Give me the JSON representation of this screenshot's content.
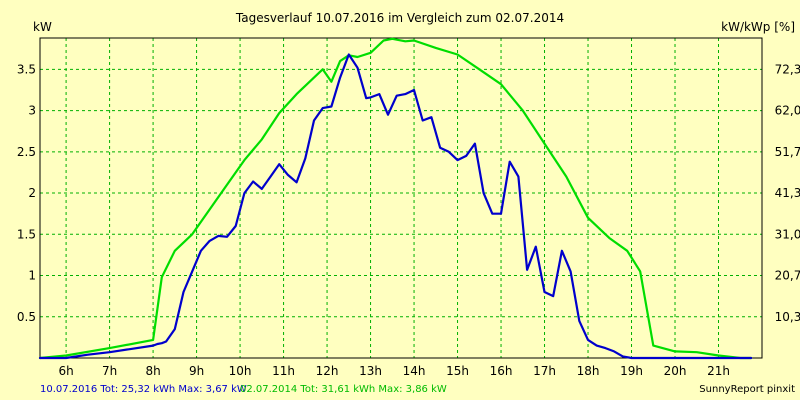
{
  "chart_data": {
    "type": "line",
    "title": "Tagesverlauf 10.07.2016 im Vergleich zum 02.07.2014",
    "ylabel_left": "kW",
    "ylabel_right": "kW/kWp [%]",
    "xlim": [
      5.4,
      22.0
    ],
    "ylim": [
      0,
      3.88
    ],
    "x_ticks": [
      6,
      7,
      8,
      9,
      10,
      11,
      12,
      13,
      14,
      15,
      16,
      17,
      18,
      19,
      20,
      21
    ],
    "x_tick_labels": [
      "6h",
      "7h",
      "8h",
      "9h",
      "10h",
      "11h",
      "12h",
      "13h",
      "14h",
      "15h",
      "16h",
      "17h",
      "18h",
      "19h",
      "20h",
      "21h"
    ],
    "y_ticks": [
      0.5,
      1,
      1.5,
      2,
      2.5,
      3,
      3.5
    ],
    "y_tick_labels": [
      "0.5",
      "1",
      "1.5",
      "2",
      "2.5",
      "3",
      "3.5"
    ],
    "y2_tick_labels": [
      "10,3",
      "20,7",
      "31,0",
      "41,3",
      "51,7",
      "62,0",
      "72,3"
    ],
    "grid": true,
    "series": [
      {
        "name": "10.07.2016",
        "color": "#0000CC",
        "x": [
          5.4,
          6.0,
          6.5,
          7.0,
          7.5,
          8.0,
          8.1,
          8.2,
          8.3,
          8.5,
          8.7,
          8.9,
          9.1,
          9.3,
          9.5,
          9.7,
          9.9,
          10.1,
          10.3,
          10.5,
          10.7,
          10.9,
          11.1,
          11.3,
          11.5,
          11.7,
          11.9,
          12.1,
          12.3,
          12.5,
          12.7,
          12.9,
          13.0,
          13.2,
          13.4,
          13.6,
          13.8,
          14.0,
          14.2,
          14.4,
          14.6,
          14.8,
          15.0,
          15.2,
          15.4,
          15.6,
          15.8,
          16.0,
          16.2,
          16.4,
          16.6,
          16.8,
          17.0,
          17.2,
          17.4,
          17.6,
          17.8,
          18.0,
          18.2,
          18.4,
          18.6,
          18.8,
          19.0,
          19.2,
          19.4,
          19.6,
          20.0,
          20.5,
          21.0,
          21.5,
          21.75
        ],
        "y": [
          0.0,
          0.0,
          0.04,
          0.07,
          0.11,
          0.15,
          0.17,
          0.18,
          0.2,
          0.35,
          0.8,
          1.05,
          1.3,
          1.42,
          1.48,
          1.47,
          1.6,
          2.0,
          2.14,
          2.05,
          2.2,
          2.35,
          2.22,
          2.13,
          2.42,
          2.88,
          3.03,
          3.05,
          3.4,
          3.68,
          3.52,
          3.15,
          3.16,
          3.2,
          2.95,
          3.18,
          3.2,
          3.25,
          2.88,
          2.92,
          2.55,
          2.5,
          2.4,
          2.45,
          2.6,
          2.0,
          1.75,
          1.75,
          2.38,
          2.2,
          1.07,
          1.35,
          0.8,
          0.75,
          1.3,
          1.05,
          0.45,
          0.22,
          0.15,
          0.12,
          0.08,
          0.02,
          0.0,
          0.0,
          0.0,
          0.0,
          0.0,
          0.0,
          0.0,
          0.0,
          0.0
        ]
      },
      {
        "name": "02.07.2014",
        "color": "#00DD00",
        "x": [
          5.4,
          6.0,
          7.0,
          8.0,
          8.2,
          8.5,
          8.9,
          9.3,
          9.7,
          10.1,
          10.5,
          10.9,
          11.3,
          11.7,
          11.9,
          12.1,
          12.3,
          12.5,
          12.7,
          13.0,
          13.3,
          13.5,
          13.8,
          14.0,
          14.5,
          15.0,
          15.5,
          16.0,
          16.5,
          17.0,
          17.5,
          18.0,
          18.5,
          18.9,
          19.2,
          19.5,
          20.0,
          20.5,
          21.0,
          21.5,
          21.75
        ],
        "y": [
          0.0,
          0.03,
          0.12,
          0.22,
          0.98,
          1.3,
          1.5,
          1.8,
          2.1,
          2.4,
          2.65,
          2.97,
          3.2,
          3.4,
          3.5,
          3.35,
          3.6,
          3.67,
          3.65,
          3.7,
          3.85,
          3.87,
          3.84,
          3.85,
          3.76,
          3.68,
          3.5,
          3.32,
          3.0,
          2.6,
          2.2,
          1.7,
          1.45,
          1.3,
          1.05,
          0.15,
          0.08,
          0.07,
          0.03,
          0.0,
          0.0
        ]
      }
    ]
  },
  "footer": {
    "left_label": "10.07.2016 Tot: 25,32 kWh Max: 3,67 kW",
    "middle_label": "02.07.2014 Tot: 31,61 kWh Max: 3,86 kW",
    "right_label": "SunnyReport pinxit",
    "left_color": "#0000CC",
    "middle_color": "#00BB00"
  }
}
